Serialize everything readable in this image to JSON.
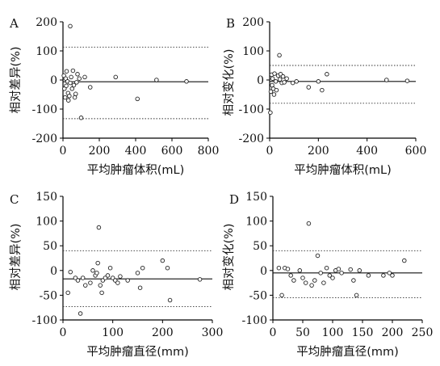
{
  "chart_data": [
    {
      "type": "scatter",
      "panel_label": "A",
      "xlabel": "平均肿瘤体积(mL)",
      "ylabel": "相对差异(%)",
      "xlim": [
        0,
        800
      ],
      "ylim": [
        -200,
        200
      ],
      "xticks": [
        0,
        200,
        400,
        600,
        800
      ],
      "yticks": [
        -200,
        -100,
        0,
        100,
        200
      ],
      "mean_line": -6,
      "limits": [
        113,
        -133
      ],
      "grid": false,
      "points": [
        {
          "x": 5,
          "y": 15
        },
        {
          "x": 8,
          "y": -30
        },
        {
          "x": 12,
          "y": -60
        },
        {
          "x": 15,
          "y": 5
        },
        {
          "x": 18,
          "y": -20
        },
        {
          "x": 20,
          "y": 30
        },
        {
          "x": 25,
          "y": -5
        },
        {
          "x": 28,
          "y": -45
        },
        {
          "x": 30,
          "y": -70
        },
        {
          "x": 35,
          "y": -55
        },
        {
          "x": 40,
          "y": 185
        },
        {
          "x": 40,
          "y": -10
        },
        {
          "x": 45,
          "y": 10
        },
        {
          "x": 50,
          "y": -30
        },
        {
          "x": 55,
          "y": 32
        },
        {
          "x": 60,
          "y": -18
        },
        {
          "x": 65,
          "y": -60
        },
        {
          "x": 70,
          "y": -48
        },
        {
          "x": 75,
          "y": -8
        },
        {
          "x": 80,
          "y": 20
        },
        {
          "x": 90,
          "y": 5
        },
        {
          "x": 100,
          "y": -130
        },
        {
          "x": 120,
          "y": 10
        },
        {
          "x": 150,
          "y": -25
        },
        {
          "x": 290,
          "y": 10
        },
        {
          "x": 410,
          "y": -65
        },
        {
          "x": 515,
          "y": 0
        },
        {
          "x": 680,
          "y": -5
        }
      ]
    },
    {
      "type": "scatter",
      "panel_label": "B",
      "xlabel": "平均肿瘤体积(mL)",
      "ylabel": "相对变化(%)",
      "xlim": [
        0,
        600
      ],
      "ylim": [
        -200,
        200
      ],
      "xticks": [
        0,
        200,
        400,
        600
      ],
      "yticks": [
        -200,
        -100,
        0,
        100,
        200
      ],
      "mean_line": -5,
      "limits": [
        50,
        -80
      ],
      "grid": false,
      "points": [
        {
          "x": 3,
          "y": -112
        },
        {
          "x": 5,
          "y": -40
        },
        {
          "x": 8,
          "y": 18
        },
        {
          "x": 10,
          "y": -18
        },
        {
          "x": 12,
          "y": 5
        },
        {
          "x": 15,
          "y": -30
        },
        {
          "x": 18,
          "y": -50
        },
        {
          "x": 20,
          "y": 22
        },
        {
          "x": 25,
          "y": -5
        },
        {
          "x": 28,
          "y": -35
        },
        {
          "x": 35,
          "y": 15
        },
        {
          "x": 40,
          "y": 85
        },
        {
          "x": 42,
          "y": 2
        },
        {
          "x": 45,
          "y": 20
        },
        {
          "x": 50,
          "y": -10
        },
        {
          "x": 55,
          "y": 12
        },
        {
          "x": 60,
          "y": -8
        },
        {
          "x": 70,
          "y": 5
        },
        {
          "x": 95,
          "y": -10
        },
        {
          "x": 110,
          "y": -5
        },
        {
          "x": 160,
          "y": -25
        },
        {
          "x": 200,
          "y": -5
        },
        {
          "x": 215,
          "y": -35
        },
        {
          "x": 235,
          "y": 20
        },
        {
          "x": 480,
          "y": 0
        },
        {
          "x": 565,
          "y": -3
        }
      ]
    },
    {
      "type": "scatter",
      "panel_label": "C",
      "xlabel": "平均肿瘤直径(mm)",
      "ylabel": "相对差异(%)",
      "xlim": [
        0,
        300
      ],
      "ylim": [
        -100,
        150
      ],
      "xticks": [
        0,
        100,
        200,
        300
      ],
      "yticks": [
        -100,
        -50,
        0,
        50,
        100,
        150
      ],
      "mean_line": -17,
      "limits": [
        40,
        -73
      ],
      "grid": false,
      "points": [
        {
          "x": 10,
          "y": -45
        },
        {
          "x": 15,
          "y": -3
        },
        {
          "x": 25,
          "y": -15
        },
        {
          "x": 30,
          "y": -20
        },
        {
          "x": 35,
          "y": -87
        },
        {
          "x": 40,
          "y": -15
        },
        {
          "x": 45,
          "y": -30
        },
        {
          "x": 55,
          "y": -25
        },
        {
          "x": 60,
          "y": 0
        },
        {
          "x": 65,
          "y": -10
        },
        {
          "x": 68,
          "y": -5
        },
        {
          "x": 70,
          "y": 15
        },
        {
          "x": 72,
          "y": 87
        },
        {
          "x": 75,
          "y": -30
        },
        {
          "x": 78,
          "y": -45
        },
        {
          "x": 80,
          "y": -20
        },
        {
          "x": 85,
          "y": -15
        },
        {
          "x": 90,
          "y": -10
        },
        {
          "x": 95,
          "y": 5
        },
        {
          "x": 100,
          "y": -15
        },
        {
          "x": 105,
          "y": -20
        },
        {
          "x": 110,
          "y": -25
        },
        {
          "x": 115,
          "y": -12
        },
        {
          "x": 130,
          "y": -20
        },
        {
          "x": 150,
          "y": -5
        },
        {
          "x": 155,
          "y": -35
        },
        {
          "x": 160,
          "y": 5
        },
        {
          "x": 200,
          "y": 20
        },
        {
          "x": 210,
          "y": 5
        },
        {
          "x": 215,
          "y": -60
        },
        {
          "x": 275,
          "y": -18
        }
      ]
    },
    {
      "type": "scatter",
      "panel_label": "D",
      "xlabel": "平均肿瘤直径(mm)",
      "ylabel": "相对变化(%)",
      "xlim": [
        0,
        250
      ],
      "ylim": [
        -100,
        150
      ],
      "xticks": [
        0,
        50,
        100,
        150,
        200,
        250
      ],
      "yticks": [
        -100,
        -50,
        0,
        50,
        100,
        150
      ],
      "mean_line": -5,
      "limits": [
        40,
        -55
      ],
      "grid": false,
      "points": [
        {
          "x": 10,
          "y": 5
        },
        {
          "x": 15,
          "y": -50
        },
        {
          "x": 20,
          "y": 5
        },
        {
          "x": 25,
          "y": 3
        },
        {
          "x": 30,
          "y": -10
        },
        {
          "x": 35,
          "y": -20
        },
        {
          "x": 45,
          "y": 0
        },
        {
          "x": 50,
          "y": -15
        },
        {
          "x": 55,
          "y": -25
        },
        {
          "x": 60,
          "y": 95
        },
        {
          "x": 65,
          "y": -30
        },
        {
          "x": 70,
          "y": -20
        },
        {
          "x": 75,
          "y": 30
        },
        {
          "x": 80,
          "y": -5
        },
        {
          "x": 85,
          "y": -25
        },
        {
          "x": 90,
          "y": 5
        },
        {
          "x": 95,
          "y": -10
        },
        {
          "x": 100,
          "y": -15
        },
        {
          "x": 105,
          "y": 0
        },
        {
          "x": 110,
          "y": 3
        },
        {
          "x": 115,
          "y": -5
        },
        {
          "x": 130,
          "y": 2
        },
        {
          "x": 135,
          "y": -20
        },
        {
          "x": 140,
          "y": -50
        },
        {
          "x": 145,
          "y": 0
        },
        {
          "x": 160,
          "y": -10
        },
        {
          "x": 185,
          "y": -10
        },
        {
          "x": 195,
          "y": -5
        },
        {
          "x": 200,
          "y": -10
        },
        {
          "x": 220,
          "y": 20
        }
      ]
    }
  ]
}
